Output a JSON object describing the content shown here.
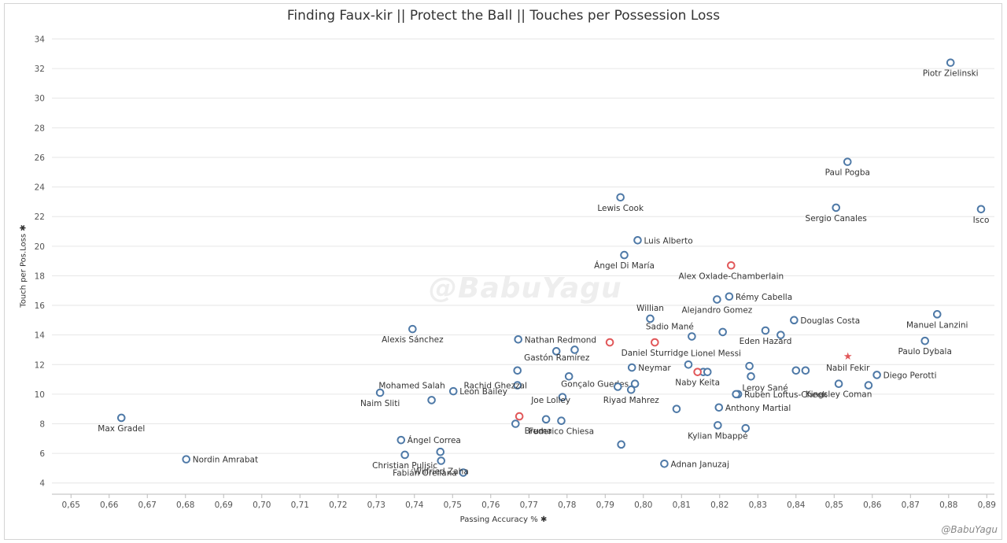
{
  "title": "Finding Faux-kir  ||  Protect the Ball  ||  Touches per Possession Loss",
  "watermark": "@BabuYagu",
  "credit": "@BabuYagu",
  "axis_icon": "pin-icon",
  "colors": {
    "default": "#4e79a7",
    "highlight": "#e15759",
    "grid": "#e6e6e6"
  },
  "chart_data": {
    "type": "scatter",
    "title": "Finding Faux-kir  ||  Protect the Ball  ||  Touches per Possession Loss",
    "xlabel": "Passing Accuracy %",
    "ylabel": "Touch per Pos.Loss",
    "xlim": [
      0.645,
      0.892
    ],
    "ylim": [
      3.4,
      34.4
    ],
    "xticks": [
      "0,65",
      "0,66",
      "0,67",
      "0,68",
      "0,69",
      "0,70",
      "0,71",
      "0,72",
      "0,73",
      "0,74",
      "0,75",
      "0,76",
      "0,77",
      "0,78",
      "0,79",
      "0,80",
      "0,81",
      "0,82",
      "0,83",
      "0,84",
      "0,85",
      "0,86",
      "0,87",
      "0,88",
      "0,89"
    ],
    "yticks": [
      4,
      6,
      8,
      10,
      12,
      14,
      16,
      18,
      20,
      22,
      24,
      26,
      28,
      30,
      32,
      34
    ],
    "grid": "horizontal",
    "points": [
      {
        "name": "Piotr Zielinski",
        "x": 0.8805,
        "y": 32.4,
        "color": "default"
      },
      {
        "name": "Paul Pogba",
        "x": 0.8535,
        "y": 25.7,
        "color": "default"
      },
      {
        "name": "Lewis Cook",
        "x": 0.794,
        "y": 23.3,
        "color": "default"
      },
      {
        "name": "Sergio Canales",
        "x": 0.8505,
        "y": 22.6,
        "color": "default"
      },
      {
        "name": "Isco",
        "x": 0.8885,
        "y": 22.5,
        "color": "default"
      },
      {
        "name": "Luis Alberto",
        "x": 0.7985,
        "y": 20.4,
        "color": "default"
      },
      {
        "name": "Ángel Di María",
        "x": 0.795,
        "y": 19.4,
        "color": "default"
      },
      {
        "name": "Alex Oxlade-Chamberlain",
        "x": 0.823,
        "y": 18.7,
        "color": "highlight"
      },
      {
        "name": "Rémy Cabella",
        "x": 0.8225,
        "y": 16.6,
        "color": "default"
      },
      {
        "name": "Alejandro Gomez",
        "x": 0.8193,
        "y": 16.4,
        "color": "default"
      },
      {
        "name": "Manuel Lanzini",
        "x": 0.877,
        "y": 15.4,
        "color": "default"
      },
      {
        "name": "Willian",
        "x": 0.8018,
        "y": 15.1,
        "color": "default"
      },
      {
        "name": "Douglas Costa",
        "x": 0.8395,
        "y": 15.0,
        "color": "default"
      },
      {
        "name": "Alexis Sánchez",
        "x": 0.7395,
        "y": 14.4,
        "color": "default"
      },
      {
        "name": "Eden Hazard",
        "x": 0.832,
        "y": 14.3,
        "color": "default"
      },
      {
        "name": "",
        "x": 0.8208,
        "y": 14.2,
        "color": "default"
      },
      {
        "name": "",
        "x": 0.836,
        "y": 14.0,
        "color": "default"
      },
      {
        "name": "Sadio Mané",
        "x": 0.8127,
        "y": 13.9,
        "color": "default"
      },
      {
        "name": "Nathan Redmond",
        "x": 0.7672,
        "y": 13.7,
        "color": "default"
      },
      {
        "name": "Paulo Dybala",
        "x": 0.8738,
        "y": 13.6,
        "color": "default"
      },
      {
        "name": "Daniel Sturridge",
        "x": 0.803,
        "y": 13.5,
        "color": "highlight"
      },
      {
        "name": "",
        "x": 0.7912,
        "y": 13.5,
        "color": "highlight"
      },
      {
        "name": "",
        "x": 0.782,
        "y": 13.0,
        "color": "default"
      },
      {
        "name": "",
        "x": 0.7772,
        "y": 12.9,
        "color": "default"
      },
      {
        "name": "Lionel Messi",
        "x": 0.8118,
        "y": 12.0,
        "color": "default"
      },
      {
        "name": "",
        "x": 0.8278,
        "y": 11.9,
        "color": "default"
      },
      {
        "name": "Neymar",
        "x": 0.797,
        "y": 11.8,
        "color": "default"
      },
      {
        "name": "Gastón Ramírez",
        "x": 0.767,
        "y": 11.6,
        "color": "default"
      },
      {
        "name": "",
        "x": 0.84,
        "y": 11.6,
        "color": "default"
      },
      {
        "name": "",
        "x": 0.8425,
        "y": 11.6,
        "color": "default"
      },
      {
        "name": "Rachid Ghezzal",
        "x": 0.767,
        "y": 10.6,
        "color": "default"
      },
      {
        "name": "",
        "x": 0.8157,
        "y": 11.5,
        "color": "default"
      },
      {
        "name": "",
        "x": 0.8168,
        "y": 11.5,
        "color": "default"
      },
      {
        "name": "Naby Keita",
        "x": 0.8142,
        "y": 11.5,
        "color": "highlight"
      },
      {
        "name": "Diego Perotti",
        "x": 0.8612,
        "y": 11.3,
        "color": "default"
      },
      {
        "name": "Leroy Sané",
        "x": 0.8282,
        "y": 11.2,
        "color": "default"
      },
      {
        "name": "",
        "x": 0.7805,
        "y": 11.2,
        "color": "default"
      },
      {
        "name": "Gonçalo Guedes",
        "x": 0.7978,
        "y": 10.7,
        "color": "default"
      },
      {
        "name": "Kingsley Coman",
        "x": 0.8512,
        "y": 10.7,
        "color": "default"
      },
      {
        "name": "",
        "x": 0.859,
        "y": 10.6,
        "color": "default"
      },
      {
        "name": "",
        "x": 0.7933,
        "y": 10.5,
        "color": "default"
      },
      {
        "name": "Riyad Mahrez",
        "x": 0.7968,
        "y": 10.3,
        "color": "default"
      },
      {
        "name": "Leon Bailey",
        "x": 0.7502,
        "y": 10.2,
        "color": "default"
      },
      {
        "name": "Naim Sliti",
        "x": 0.731,
        "y": 10.1,
        "color": "default"
      },
      {
        "name": "Ruben Loftus-Cheek",
        "x": 0.8248,
        "y": 10.0,
        "color": "default"
      },
      {
        "name": "",
        "x": 0.8243,
        "y": 10.0,
        "color": "default"
      },
      {
        "name": "",
        "x": 0.7788,
        "y": 9.8,
        "color": "default"
      },
      {
        "name": "Mohamed Salah",
        "x": 0.7445,
        "y": 9.6,
        "color": "default"
      },
      {
        "name": "Anthony Martial",
        "x": 0.8198,
        "y": 9.1,
        "color": "default"
      },
      {
        "name": "",
        "x": 0.8087,
        "y": 9.0,
        "color": "default"
      },
      {
        "name": "Joe Lolley",
        "x": 0.7675,
        "y": 8.5,
        "color": "highlight"
      },
      {
        "name": "Max Gradel",
        "x": 0.6632,
        "y": 8.4,
        "color": "default"
      },
      {
        "name": "Bruma",
        "x": 0.7745,
        "y": 8.3,
        "color": "default"
      },
      {
        "name": "Federico Chiesa",
        "x": 0.7785,
        "y": 8.2,
        "color": "default"
      },
      {
        "name": "",
        "x": 0.7665,
        "y": 8.0,
        "color": "default"
      },
      {
        "name": "Kylian Mbappé",
        "x": 0.8195,
        "y": 7.9,
        "color": "default"
      },
      {
        "name": "",
        "x": 0.8268,
        "y": 7.7,
        "color": "default"
      },
      {
        "name": "Ángel Correa",
        "x": 0.7365,
        "y": 6.9,
        "color": "default"
      },
      {
        "name": "",
        "x": 0.7942,
        "y": 6.6,
        "color": "default"
      },
      {
        "name": "",
        "x": 0.7468,
        "y": 6.1,
        "color": "default"
      },
      {
        "name": "Christian Pulisic",
        "x": 0.7375,
        "y": 5.9,
        "color": "default"
      },
      {
        "name": "Nordin Amrabat",
        "x": 0.6802,
        "y": 5.6,
        "color": "default"
      },
      {
        "name": "Fabián Orellana",
        "x": 0.7528,
        "y": 4.7,
        "color": "default"
      },
      {
        "name": "Adnan Januzaj",
        "x": 0.8055,
        "y": 5.3,
        "color": "default"
      },
      {
        "name": "Wilfried Zaha",
        "x": 0.747,
        "y": 5.5,
        "color": "default"
      }
    ],
    "star": {
      "name": "Nabil Fekir",
      "x": 0.8536,
      "y": 12.6,
      "color": "highlight"
    }
  }
}
